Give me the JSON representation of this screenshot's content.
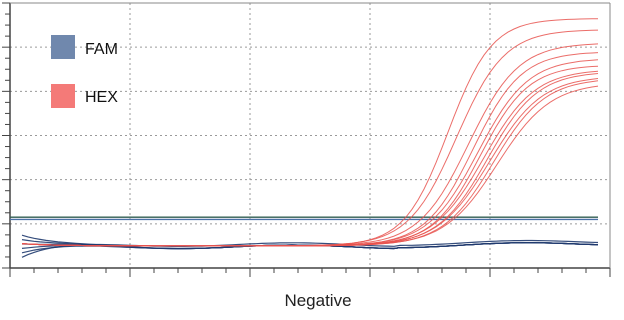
{
  "chart_data": {
    "type": "line",
    "title": "",
    "xlabel": "Negative",
    "ylabel": "",
    "xlim": [
      0,
      50
    ],
    "ylim": [
      -0.1,
      1.1
    ],
    "grid": true,
    "legend_position": "top-left",
    "thresholds": [
      {
        "y": 0.13,
        "color": "#2f5d50"
      },
      {
        "y": 0.12,
        "color": "#4a6fa5"
      }
    ],
    "series": [
      {
        "name": "FAM",
        "color": "#7088ad"
      },
      {
        "name": "HEX",
        "color": "#f47a78"
      }
    ],
    "hex_curves": [
      {
        "mid": 36.5,
        "k": 0.55,
        "max": 1.03
      },
      {
        "mid": 37.2,
        "k": 0.5,
        "max": 0.98
      },
      {
        "mid": 38.2,
        "k": 0.48,
        "max": 0.92
      },
      {
        "mid": 38.6,
        "k": 0.5,
        "max": 0.88
      },
      {
        "mid": 39.0,
        "k": 0.48,
        "max": 0.85
      },
      {
        "mid": 39.2,
        "k": 0.5,
        "max": 0.82
      },
      {
        "mid": 39.5,
        "k": 0.47,
        "max": 0.8
      },
      {
        "mid": 39.8,
        "k": 0.48,
        "max": 0.79
      },
      {
        "mid": 40.0,
        "k": 0.46,
        "max": 0.77
      },
      {
        "mid": 40.3,
        "k": 0.47,
        "max": 0.76
      },
      {
        "mid": 40.6,
        "k": 0.45,
        "max": 0.74
      }
    ],
    "fam_curves": [
      {
        "start": 0.03,
        "end": 0.0
      },
      {
        "start": 0.01,
        "end": 0.0
      },
      {
        "start": -0.01,
        "end": 0.0
      },
      {
        "start": -0.03,
        "end": 0.0
      },
      {
        "start": 0.05,
        "end": 0.0
      },
      {
        "start": -0.05,
        "end": 0.01
      }
    ]
  }
}
